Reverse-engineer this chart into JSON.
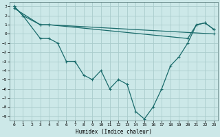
{
  "xlabel": "Humidex (Indice chaleur)",
  "background_color": "#cce8e8",
  "grid_color": "#aacccc",
  "line_color": "#1a6b6b",
  "ylim": [
    -9.5,
    3.5
  ],
  "xlim": [
    -0.5,
    23.5
  ],
  "yticks": [
    3,
    2,
    1,
    0,
    -1,
    -2,
    -3,
    -4,
    -5,
    -6,
    -7,
    -8,
    -9
  ],
  "xticks": [
    0,
    1,
    2,
    3,
    4,
    5,
    6,
    7,
    8,
    9,
    10,
    11,
    12,
    13,
    14,
    15,
    16,
    17,
    18,
    19,
    20,
    21,
    22,
    23
  ],
  "line1_x": [
    0,
    1,
    3,
    4,
    23
  ],
  "line1_y": [
    3,
    2,
    1,
    1,
    0
  ],
  "line2_x": [
    0,
    3,
    4,
    20,
    21,
    22,
    23
  ],
  "line2_y": [
    2.8,
    1,
    1,
    -0.5,
    1,
    1.2,
    0.5
  ],
  "line3_x": [
    0,
    1,
    3,
    4,
    5,
    6,
    7,
    8,
    9,
    10,
    11,
    12,
    13,
    14,
    15,
    16,
    17,
    18,
    19,
    20,
    21,
    22,
    23
  ],
  "line3_y": [
    3,
    2,
    -0.5,
    -0.5,
    -1,
    -3,
    -3,
    -4.5,
    -5,
    -4,
    -6,
    -5,
    -5.5,
    -8.5,
    -9.3,
    -8,
    -6,
    -3.5,
    -2.5,
    -1,
    1,
    1.2,
    0.5
  ]
}
